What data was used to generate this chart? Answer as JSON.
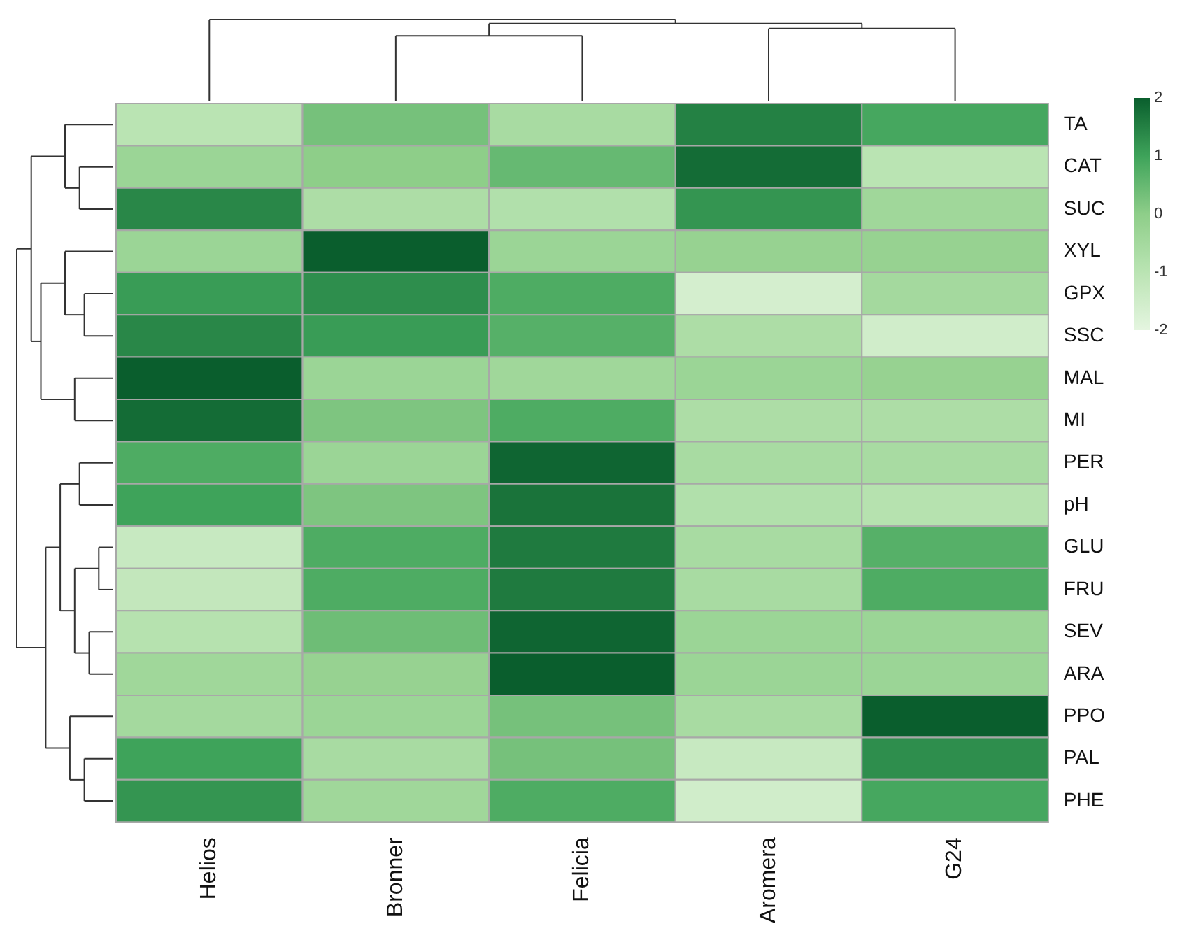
{
  "chart_data": {
    "type": "heatmap",
    "categories": [
      "Helios",
      "Bronner",
      "Felicia",
      "Aromera",
      "G24"
    ],
    "y_categories": [
      "TA",
      "CAT",
      "SUC",
      "XYL",
      "GPX",
      "SSC",
      "MAL",
      "MI",
      "PER",
      "pH",
      "GLU",
      "FRU",
      "SEV",
      "ARA",
      "PPO",
      "PAL",
      "PHE"
    ],
    "cells": [
      [
        -1,
        0.3,
        -0.6,
        1.5,
        0.9
      ],
      [
        -0.3,
        0,
        0.5,
        1.8,
        -1
      ],
      [
        1.4,
        -0.7,
        -0.8,
        1.2,
        -0.4
      ],
      [
        -0.3,
        2,
        -0.3,
        -0.2,
        -0.2
      ],
      [
        1.1,
        1.3,
        0.8,
        -1.6,
        -0.5
      ],
      [
        1.4,
        1.1,
        0.7,
        -0.7,
        -1.5
      ],
      [
        2,
        -0.3,
        -0.4,
        -0.3,
        -0.2
      ],
      [
        1.8,
        0.2,
        0.8,
        -0.7,
        -0.7
      ],
      [
        0.8,
        -0.3,
        1.9,
        -0.6,
        -0.6
      ],
      [
        1,
        0.2,
        1.7,
        -0.8,
        -0.9
      ],
      [
        -1.3,
        0.8,
        1.6,
        -0.6,
        0.7
      ],
      [
        -1.2,
        0.8,
        1.6,
        -0.6,
        0.8
      ],
      [
        -0.9,
        0.4,
        1.9,
        -0.3,
        -0.3
      ],
      [
        -0.4,
        -0.2,
        2,
        -0.3,
        -0.3
      ],
      [
        -0.5,
        -0.3,
        0.3,
        -0.6,
        2
      ],
      [
        1,
        -0.6,
        0.3,
        -1.3,
        1.3
      ],
      [
        1.2,
        -0.4,
        0.8,
        -1.5,
        0.9
      ]
    ],
    "clim": [
      -2,
      2
    ],
    "cticks": [
      -2,
      -1,
      0,
      1,
      2
    ]
  }
}
